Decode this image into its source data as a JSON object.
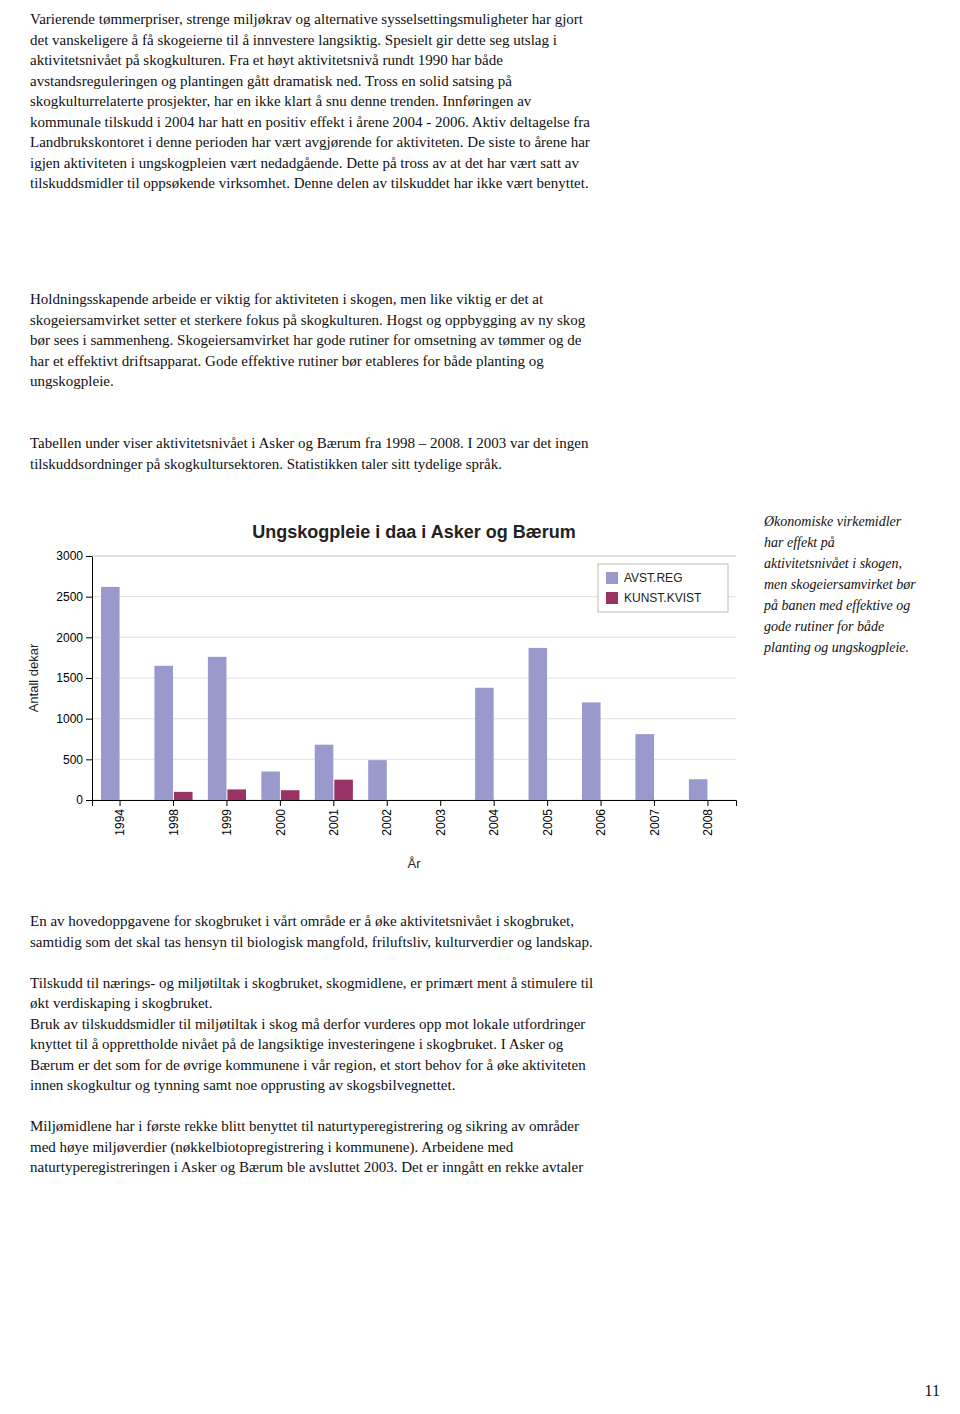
{
  "chart_data": {
    "type": "bar",
    "title": "Ungskogpleie i daa i Asker og Bærum",
    "xlabel": "År",
    "ylabel": "Antall dekar",
    "categories": [
      "1994",
      "1998",
      "1999",
      "2000",
      "2001",
      "2002",
      "2003",
      "2004",
      "2005",
      "2006",
      "2007",
      "2008"
    ],
    "series": [
      {
        "name": "AVST.REG",
        "color": "#9999cc",
        "values": [
          2620,
          1650,
          1760,
          350,
          680,
          490,
          0,
          1380,
          1870,
          1200,
          810,
          255
        ]
      },
      {
        "name": "KUNST.KVIST",
        "color": "#993366",
        "values": [
          0,
          100,
          130,
          120,
          250,
          0,
          0,
          0,
          0,
          0,
          0,
          0
        ]
      }
    ],
    "ylim": [
      0,
      3000
    ],
    "yticks": [
      0,
      500,
      1000,
      1500,
      2000,
      2500,
      3000
    ],
    "grid": true,
    "legend": "upper right"
  },
  "text_above": "Varierende tømmerpriser, strenge miljøkrav og alternative sysselsettingsmuligheter har gjort\ndet vanskeligere å få skogeierne til å innvestere langsiktig.  Spesielt gir dette seg utslag i\naktivitetsnivået på skogkulturen.  Fra et høyt aktivitetsnivå rundt 1990 har både\navstandsreguleringen og plantingen gått dramatisk ned.  Tross en solid satsing på\nskogkulturrelaterte prosjekter, har en ikke klart å snu denne trenden.  Innføringen av\nkommunale tilskudd i 2004 har hatt en positiv effekt i årene 2004 - 2006.  Aktiv deltagelse fra\nLandbrukskontoret i denne perioden har vært avgjørende for aktiviteten.  De siste to årene har\nigjen aktiviteten i ungskogpleien vært nedadgående.  Dette på tross av at det har vært satt av\ntilskuddsmidler til oppsøkende virksomhet.  Denne delen av tilskuddet har ikke vært benyttet.",
  "text_middle": "Holdningsskapende arbeide er viktig for aktiviteten i skogen, men like viktig er det at\nskogeiersamvirket setter et sterkere fokus på skogkulturen. Hogst og oppbygging av ny skog\nbør sees i sammenheng.  Skogeiersamvirket har gode rutiner for omsetning av tømmer og de\nhar et effektivt driftsapparat.  Gode effektive rutiner bør etableres for både planting og\nungskogpleie.",
  "text_pre_chart": "Tabellen under viser aktivitetsnivået i Asker og Bærum fra 1998 – 2008.  I 2003 var det ingen\ntilskuddsordninger på skogkultursektoren.  Statistikken taler sitt tydelige språk.",
  "text_right": "Økonomiske virkemidler\nhar effekt på\naktivitetsnivået i skogen,\nmen skogeiersamvirket bør\npå banen med effektive og\ngode rutiner for både\nplanting og ungskogpleie.",
  "text_below": "En av hovedoppgavene for skogbruket i vårt område er å øke aktivitetsnivået i skogbruket,\nsamtidig som det skal tas hensyn til biologisk mangfold, friluftsliv, kulturverdier og landskap.\n\nTilskudd til nærings- og miljøtiltak i skogbruket, skogmidlene, er primært ment å stimulere til\nøkt verdiskaping i skogbruket.\nBruk av tilskuddsmidler til miljøtiltak i skog må derfor vurderes opp mot lokale utfordringer\nknyttet til å opprettholde nivået på de langsiktige investeringene i skogbruket. I Asker  og\nBærum er det som for de øvrige kommunene i vår region, et stort behov for å øke aktiviteten\ninnen skogkultur og tynning samt noe opprusting av skogsbilvegnettet.\n\nMiljømidlene har i første rekke blitt benyttet til naturtyperegistrering og sikring av områder\nmed høye miljøverdier (nøkkelbiotopregistrering i kommunene).  Arbeidene med\nnaturtyperegistreringen i Asker og Bærum ble avsluttet 2003.  Det er inngått en rekke avtaler",
  "page_number": "11"
}
